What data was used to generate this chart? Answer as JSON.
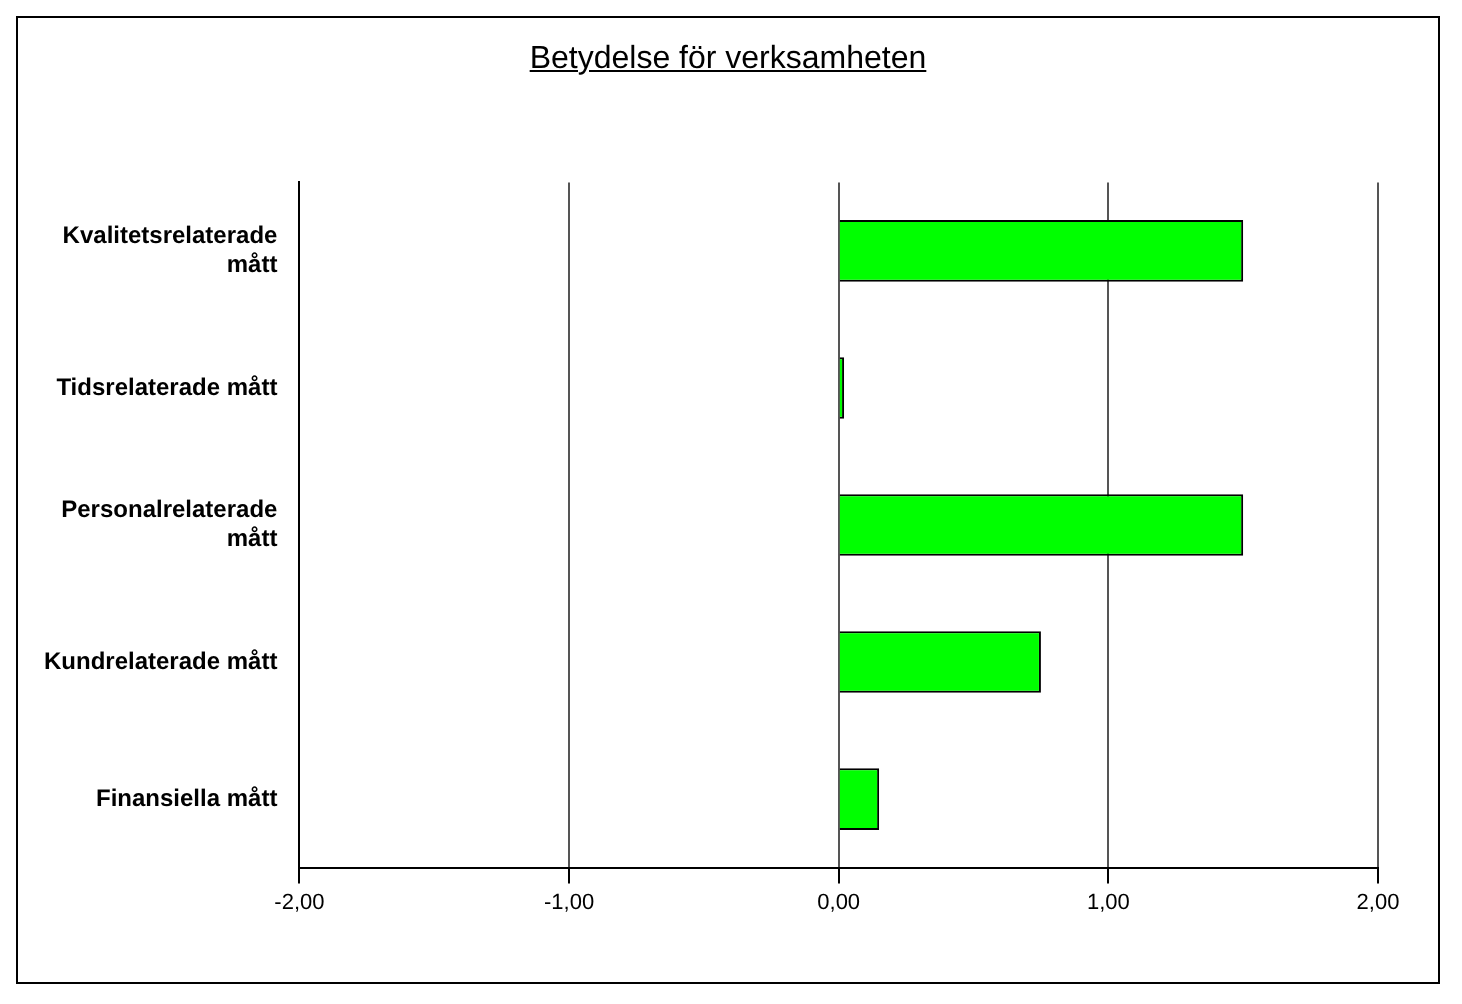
{
  "chart_data": {
    "type": "bar",
    "orientation": "horizontal",
    "title": "Betydelse för verksamheten",
    "categories": [
      "Kvalitetsrelaterade mått",
      "Tidsrelaterade mått",
      "Personalrelaterade mått",
      "Kundrelaterade mått",
      "Finansiella mått"
    ],
    "values": [
      1.5,
      0.02,
      1.5,
      0.75,
      0.15
    ],
    "color": "#00ff00",
    "xlim": [
      -2,
      2
    ],
    "xticks": [
      {
        "value": -2,
        "label": "-2,00"
      },
      {
        "value": -1,
        "label": "-1,00"
      },
      {
        "value": 0,
        "label": "0,00"
      },
      {
        "value": 1,
        "label": "1,00"
      },
      {
        "value": 2,
        "label": "2,00"
      }
    ],
    "grid": "x"
  }
}
